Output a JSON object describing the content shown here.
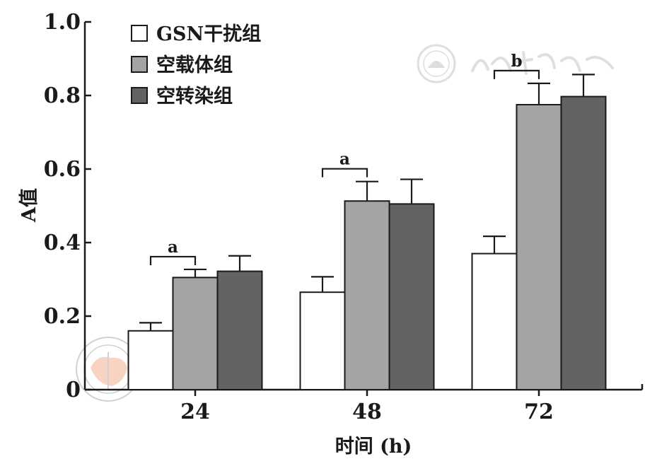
{
  "chart_data": {
    "type": "bar",
    "xlabel": "时间 (h)",
    "ylabel": "A值",
    "categories": [
      "24",
      "48",
      "72"
    ],
    "ylim": [
      0,
      1.0
    ],
    "yticks": [
      "0",
      "0.2",
      "0.4",
      "0.6",
      "0.8",
      "1.0"
    ],
    "series": [
      {
        "name": "GSN干扰组",
        "color": "#ffffff",
        "values": [
          0.16,
          0.265,
          0.37
        ],
        "errors": [
          0.022,
          0.042,
          0.047
        ]
      },
      {
        "name": "空载体组",
        "color": "#a5a3a4",
        "values": [
          0.305,
          0.513,
          0.775
        ],
        "errors": [
          0.022,
          0.053,
          0.058
        ]
      },
      {
        "name": "空转染组",
        "color": "#646263",
        "values": [
          0.322,
          0.505,
          0.797
        ],
        "errors": [
          0.042,
          0.067,
          0.06
        ]
      }
    ],
    "legend_position": "top-left",
    "significance": [
      {
        "category": 0,
        "label": "a"
      },
      {
        "category": 1,
        "label": "a"
      },
      {
        "category": 2,
        "label": "b"
      }
    ]
  },
  "watermark": {
    "text": "中华医学会",
    "seal_text": "CHINESE MEDICAL ASSOCIATION"
  }
}
